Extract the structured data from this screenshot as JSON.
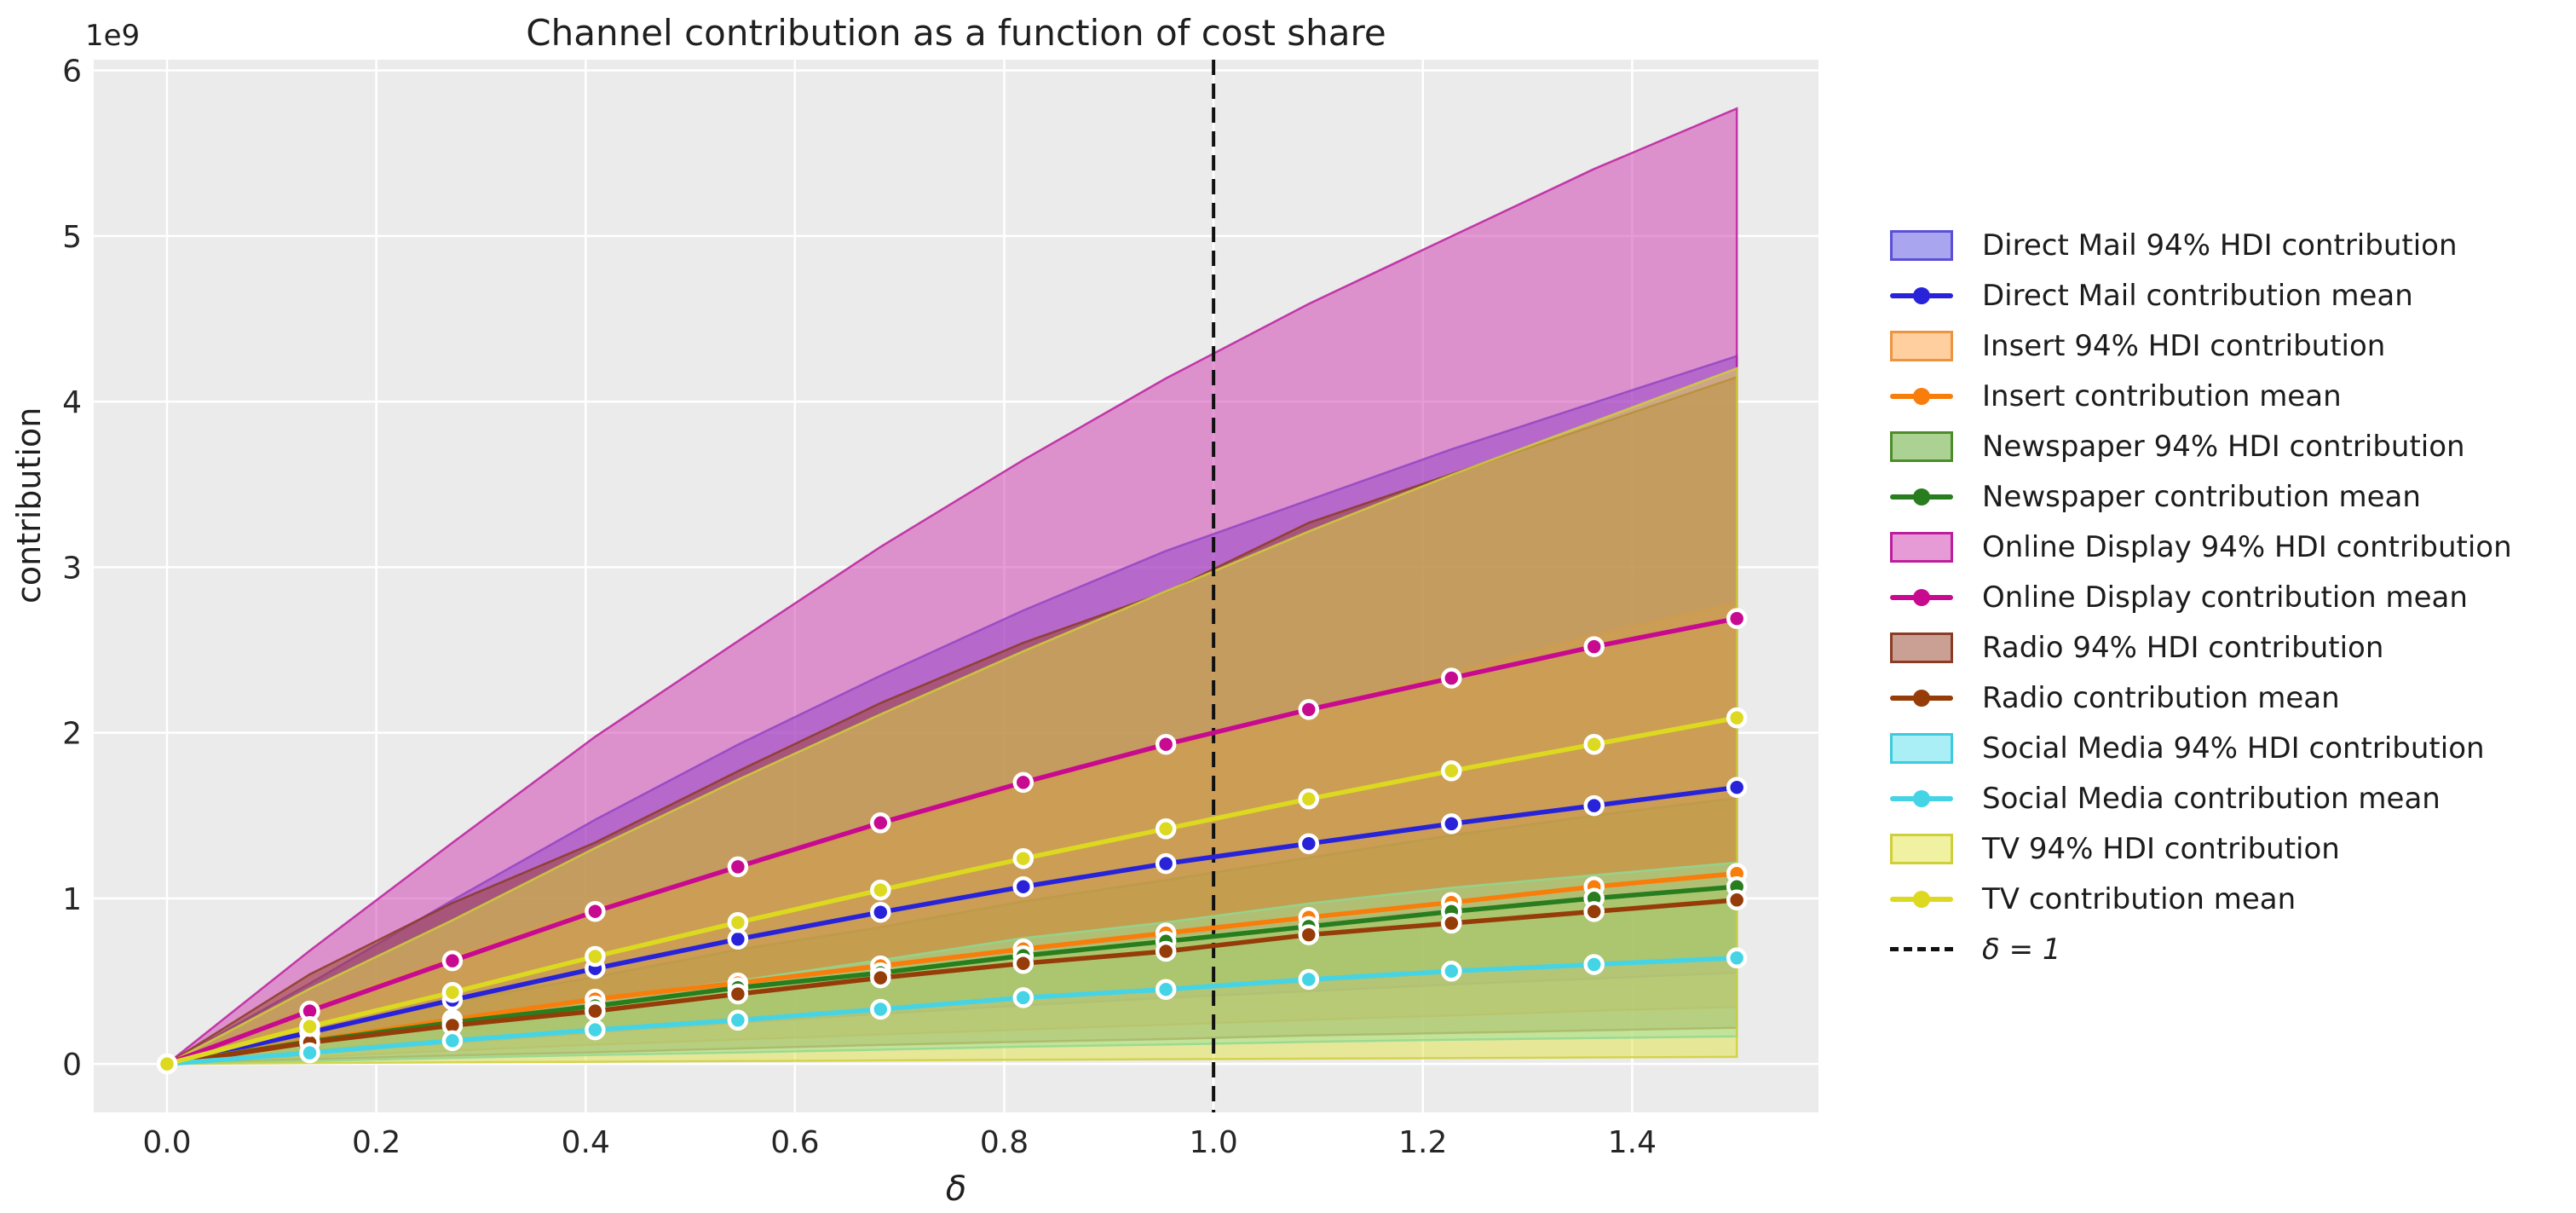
{
  "title": "Channel contribution as a function of cost share",
  "axes": {
    "xlabel": "δ",
    "ylabel": "contribution",
    "offset_text": "1e9",
    "x_tick_labels": [
      "0.0",
      "0.2",
      "0.4",
      "0.6",
      "0.8",
      "1.0",
      "1.2",
      "1.4"
    ],
    "x_tick_values": [
      0,
      0.2,
      0.4,
      0.6,
      0.8,
      1.0,
      1.2,
      1.4
    ],
    "y_tick_labels": [
      "0",
      "1",
      "2",
      "3",
      "4",
      "5",
      "6"
    ],
    "y_tick_values": [
      0,
      1,
      2,
      3,
      4,
      5,
      6
    ],
    "xlim": [
      -0.07,
      1.578
    ],
    "ylim_e9": [
      -0.293,
      6.065
    ],
    "plot_bg_color": "#ebebeb",
    "grid_color": "#ffffff",
    "tick_color": "#262626"
  },
  "chart_data": {
    "type": "area",
    "title": "Channel contribution as a function of cost share",
    "xlabel": "δ",
    "ylabel": "contribution",
    "unit": "1e9",
    "legend_position": "right",
    "grid": true,
    "x": [
      0,
      0.1364,
      0.2727,
      0.4091,
      0.5455,
      0.6818,
      0.8182,
      0.9545,
      1.0909,
      1.2273,
      1.3636,
      1.5
    ],
    "vline": {
      "x": 1.0,
      "label": "δ = 1",
      "style": "dashed",
      "color": "#111111"
    },
    "series": [
      {
        "key": "direct-mail",
        "name": "Direct Mail",
        "band_label": "Direct Mail 94% HDI contribution",
        "mean_label": "Direct Mail contribution mean",
        "color": "#2823d8",
        "band_fill": "#544ce0",
        "band_edge": "#5a50d8",
        "mean": [
          0,
          0.19,
          0.386,
          0.576,
          0.753,
          0.916,
          1.07,
          1.21,
          1.33,
          1.45,
          1.56,
          1.67
        ],
        "hdi_low": [
          0,
          0.063,
          0.127,
          0.19,
          0.249,
          0.302,
          0.353,
          0.399,
          0.439,
          0.479,
          0.515,
          0.551
        ],
        "hdi_high": [
          0,
          0.486,
          0.988,
          1.475,
          1.928,
          2.345,
          2.739,
          3.098,
          3.405,
          3.712,
          3.994,
          4.275
        ]
      },
      {
        "key": "insert",
        "name": "Insert",
        "band_label": "Insert 94% HDI contribution",
        "mean_label": "Insert contribution mean",
        "color": "#f87d0b",
        "band_fill": "#ff9f3f",
        "band_edge": "#ed9440",
        "mean": [
          0,
          0.139,
          0.268,
          0.391,
          0.489,
          0.592,
          0.694,
          0.79,
          0.885,
          0.975,
          1.07,
          1.15
        ],
        "hdi_low": [
          0,
          0.042,
          0.08,
          0.117,
          0.147,
          0.178,
          0.208,
          0.237,
          0.266,
          0.293,
          0.321,
          0.345
        ],
        "hdi_high": [
          0,
          0.336,
          0.649,
          0.946,
          1.183,
          1.433,
          1.679,
          1.912,
          2.142,
          2.36,
          2.589,
          2.783
        ]
      },
      {
        "key": "newspaper",
        "name": "Newspaper",
        "band_label": "Newspaper 94% HDI contribution",
        "mean_label": "Newspaper contribution mean",
        "color": "#287d1e",
        "band_fill": "#57a527",
        "band_edge": "#4e8c2a",
        "mean": [
          0,
          0.135,
          0.25,
          0.35,
          0.46,
          0.55,
          0.654,
          0.74,
          0.83,
          0.92,
          1.0,
          1.07
        ],
        "hdi_low": [
          0,
          0.081,
          0.15,
          0.21,
          0.276,
          0.33,
          0.392,
          0.444,
          0.498,
          0.552,
          0.6,
          0.642
        ],
        "hdi_high": [
          0,
          0.203,
          0.375,
          0.525,
          0.69,
          0.825,
          0.981,
          1.11,
          1.245,
          1.38,
          1.5,
          1.605
        ]
      },
      {
        "key": "online-display",
        "name": "Online Display",
        "band_label": "Online Display 94% HDI contribution",
        "mean_label": "Online Display contribution mean",
        "color": "#c70a90",
        "band_fill": "#ce38b0",
        "band_edge": "#bc1f9e",
        "mean": [
          0,
          0.319,
          0.623,
          0.921,
          1.19,
          1.456,
          1.7,
          1.93,
          2.14,
          2.33,
          2.52,
          2.69
        ],
        "hdi_low": [
          0,
          0.128,
          0.249,
          0.368,
          0.476,
          0.582,
          0.68,
          0.772,
          0.856,
          0.932,
          1.008,
          1.076
        ],
        "hdi_high": [
          0,
          0.684,
          1.336,
          1.976,
          2.553,
          3.123,
          3.647,
          4.14,
          4.59,
          4.998,
          5.405,
          5.77
        ]
      },
      {
        "key": "radio",
        "name": "Radio",
        "band_label": "Radio 94% HDI contribution",
        "mean_label": "Radio contribution mean",
        "color": "#953c08",
        "band_fill": "#974129",
        "band_edge": "#8a3c26",
        "mean": [
          0,
          0.129,
          0.232,
          0.319,
          0.422,
          0.52,
          0.607,
          0.68,
          0.78,
          0.85,
          0.92,
          0.99
        ],
        "hdi_low": [
          0,
          0.028,
          0.051,
          0.07,
          0.093,
          0.114,
          0.134,
          0.15,
          0.172,
          0.187,
          0.202,
          0.218
        ],
        "hdi_high": [
          0,
          0.541,
          0.972,
          1.337,
          1.768,
          2.179,
          2.543,
          2.849,
          3.268,
          3.562,
          3.855,
          4.148
        ]
      },
      {
        "key": "social-media",
        "name": "Social Media",
        "band_label": "Social Media 94% HDI contribution",
        "mean_label": "Social Media contribution mean",
        "color": "#45d4e6",
        "band_fill": "#55dded",
        "band_edge": "#3ecbdd",
        "mean": [
          0,
          0.067,
          0.14,
          0.206,
          0.264,
          0.33,
          0.4,
          0.45,
          0.51,
          0.56,
          0.6,
          0.64
        ],
        "hdi_low": [
          0,
          0.017,
          0.036,
          0.054,
          0.069,
          0.086,
          0.104,
          0.117,
          0.133,
          0.146,
          0.156,
          0.166
        ],
        "hdi_high": [
          0,
          0.127,
          0.266,
          0.391,
          0.502,
          0.627,
          0.76,
          0.855,
          0.969,
          1.064,
          1.14,
          1.216
        ]
      },
      {
        "key": "tv",
        "name": "TV",
        "band_label": "TV 94% HDI contribution",
        "mean_label": "TV contribution mean",
        "color": "#dcd920",
        "band_fill": "#e3e345",
        "band_edge": "#cfcf3a",
        "mean": [
          0,
          0.226,
          0.432,
          0.649,
          0.854,
          1.05,
          1.24,
          1.42,
          1.6,
          1.77,
          1.93,
          2.09
        ],
        "hdi_low": [
          0,
          0.005,
          0.009,
          0.013,
          0.017,
          0.021,
          0.025,
          0.028,
          0.032,
          0.035,
          0.039,
          0.042
        ],
        "hdi_high": [
          0,
          0.454,
          0.868,
          1.304,
          1.717,
          2.111,
          2.492,
          2.854,
          3.216,
          3.558,
          3.879,
          4.201
        ]
      }
    ]
  },
  "legend": {
    "items": [
      {
        "type": "band",
        "series_key": "direct-mail",
        "label": "Direct Mail 94% HDI contribution"
      },
      {
        "type": "line",
        "series_key": "direct-mail",
        "label": "Direct Mail contribution mean"
      },
      {
        "type": "band",
        "series_key": "insert",
        "label": "Insert 94% HDI contribution"
      },
      {
        "type": "line",
        "series_key": "insert",
        "label": "Insert contribution mean"
      },
      {
        "type": "band",
        "series_key": "newspaper",
        "label": "Newspaper 94% HDI contribution"
      },
      {
        "type": "line",
        "series_key": "newspaper",
        "label": "Newspaper contribution mean"
      },
      {
        "type": "band",
        "series_key": "online-display",
        "label": "Online Display 94% HDI contribution"
      },
      {
        "type": "line",
        "series_key": "online-display",
        "label": "Online Display contribution mean"
      },
      {
        "type": "band",
        "series_key": "radio",
        "label": "Radio 94% HDI contribution"
      },
      {
        "type": "line",
        "series_key": "radio",
        "label": "Radio contribution mean"
      },
      {
        "type": "band",
        "series_key": "social-media",
        "label": "Social Media 94% HDI contribution"
      },
      {
        "type": "line",
        "series_key": "social-media",
        "label": "Social Media contribution mean"
      },
      {
        "type": "band",
        "series_key": "tv",
        "label": "TV 94% HDI contribution"
      },
      {
        "type": "line",
        "series_key": "tv",
        "label": "TV contribution mean"
      },
      {
        "type": "vline",
        "series_key": "delta-1",
        "label": "δ = 1",
        "math": true
      }
    ]
  }
}
